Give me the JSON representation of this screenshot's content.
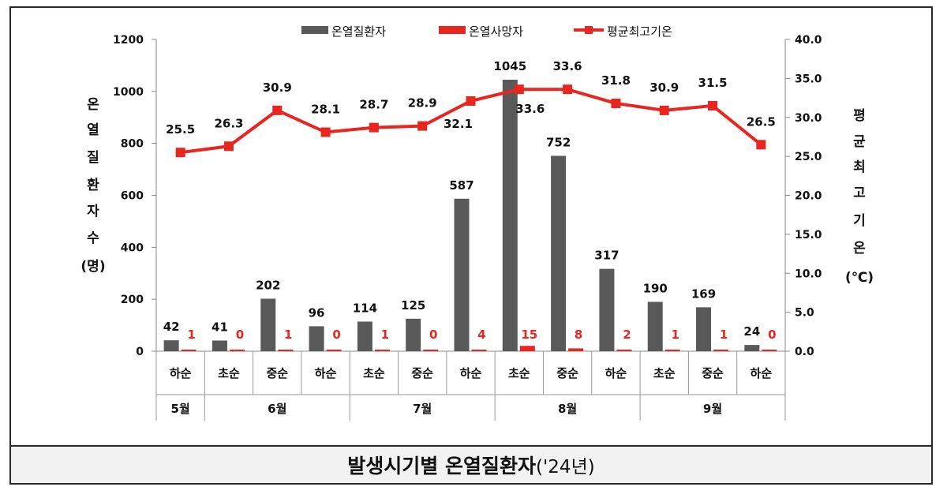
{
  "chart_data": {
    "type": "bar-line",
    "caption_main": "발생시기별 온열질환자",
    "caption_year": "('24년)",
    "categories": [
      "하순",
      "초순",
      "중순",
      "하순",
      "초순",
      "중순",
      "하순",
      "초순",
      "중순",
      "하순",
      "초순",
      "중순",
      "하순"
    ],
    "months": [
      {
        "label": "5월",
        "span": 1
      },
      {
        "label": "6월",
        "span": 3
      },
      {
        "label": "7월",
        "span": 3
      },
      {
        "label": "8월",
        "span": 3
      },
      {
        "label": "9월",
        "span": 3
      }
    ],
    "series": [
      {
        "name": "온열질환자",
        "type": "bar",
        "color": "#595959",
        "values": [
          42,
          41,
          202,
          96,
          114,
          125,
          587,
          1045,
          752,
          317,
          190,
          169,
          24
        ]
      },
      {
        "name": "온열사망자",
        "type": "bar",
        "color": "#e8251f",
        "values": [
          1,
          0,
          1,
          0,
          1,
          0,
          4,
          15,
          8,
          2,
          1,
          1,
          0
        ]
      },
      {
        "name": "평균최고기온",
        "type": "line",
        "color": "#e8251f",
        "values": [
          25.5,
          26.3,
          30.9,
          28.1,
          28.7,
          28.9,
          32.1,
          33.6,
          33.6,
          31.8,
          30.9,
          31.5,
          26.5
        ]
      }
    ],
    "temp_labels": [
      "25.5",
      "26.3",
      "30.9",
      "28.1",
      "28.7",
      "28.9",
      "32.1",
      "33.6",
      "33.6",
      "31.8",
      "30.9",
      "31.5",
      "26.5"
    ],
    "y_left": {
      "label_chars": [
        "온",
        "열",
        "질",
        "환",
        "자",
        "수",
        "(명)"
      ],
      "ticks": [
        "0",
        "200",
        "400",
        "600",
        "800",
        "1000",
        "1200"
      ],
      "min": 0,
      "max": 1200
    },
    "y_right": {
      "label_chars": [
        "평",
        "균",
        "최",
        "고",
        "기",
        "온",
        "(℃)"
      ],
      "ticks": [
        "0.0",
        "5.0",
        "10.0",
        "15.0",
        "20.0",
        "25.0",
        "30.0",
        "35.0",
        "40.0"
      ],
      "min": 0,
      "max": 40
    },
    "legend_position": "top"
  }
}
